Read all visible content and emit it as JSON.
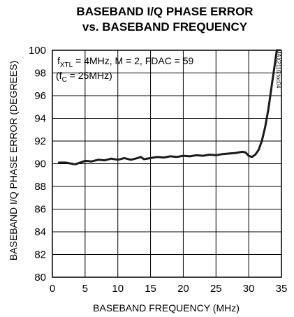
{
  "chart_data": {
    "type": "line",
    "title_line1": "BASEBAND I/Q PHASE ERROR",
    "title_line2": "vs. BASEBAND FREQUENCY",
    "xlabel": "BASEBAND FREQUENCY (MHz)",
    "ylabel": "BASEBAND I/Q PHASE ERROR (DEGREES)",
    "xlim": [
      0,
      35
    ],
    "ylim": [
      80,
      100
    ],
    "xticks": [
      0,
      5,
      10,
      15,
      20,
      25,
      30,
      35
    ],
    "yticks": [
      80,
      82,
      84,
      86,
      88,
      90,
      92,
      94,
      96,
      98,
      100
    ],
    "grid": true,
    "annotation": {
      "line1_prefix": "f",
      "line1_sub": "XTL",
      "line1_rest": " = 4MHz, M = 2, FDAC = 59",
      "line2_prefix": "(f",
      "line2_sub": "C",
      "line2_rest": " = 25MHz)"
    },
    "figure_code": "MAX2116 toc04",
    "series": [
      {
        "x": [
          1.0,
          2.0,
          3.0,
          3.5,
          4.0,
          5.0,
          6.0,
          7.0,
          8.0,
          9.0,
          10.0,
          11.0,
          12.0,
          13.0,
          13.5,
          14.0,
          15.0,
          16.0,
          17.0,
          18.0,
          19.0,
          20.0,
          21.0,
          22.0,
          23.0,
          24.0,
          25.0,
          26.0,
          27.0,
          28.0,
          29.0,
          29.5,
          30.0,
          30.5,
          31.0,
          31.5,
          32.0,
          32.5,
          33.0,
          33.5,
          34.0,
          34.3
        ],
        "y": [
          90.1,
          90.1,
          90.0,
          89.95,
          90.05,
          90.25,
          90.2,
          90.35,
          90.3,
          90.45,
          90.35,
          90.5,
          90.35,
          90.5,
          90.6,
          90.4,
          90.5,
          90.6,
          90.55,
          90.65,
          90.6,
          90.7,
          90.65,
          90.75,
          90.7,
          90.8,
          90.75,
          90.85,
          90.9,
          90.95,
          91.05,
          91.0,
          90.7,
          90.6,
          90.8,
          91.2,
          92.0,
          93.2,
          94.8,
          96.8,
          98.8,
          100.0
        ]
      }
    ]
  }
}
